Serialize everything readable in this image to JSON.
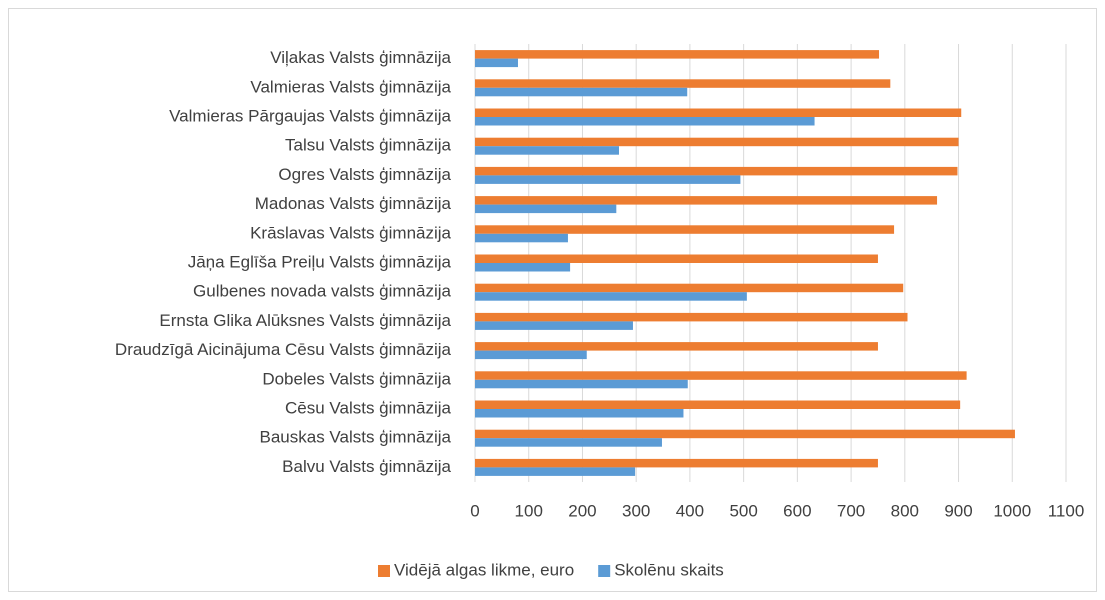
{
  "chart_data": {
    "type": "hbar",
    "categories": [
      "Balvu Valsts ģimnāzija",
      "Bauskas Valsts ģimnāzija",
      "Cēsu Valsts ģimnāzija",
      "Dobeles Valsts ģimnāzija",
      "Draudzīgā Aicinājuma Cēsu Valsts ģimnāzija",
      "Ernsta Glika Alūksnes Valsts ģimnāzija",
      "Gulbenes novada valsts ģimnāzija",
      "Jāņa Eglīša Preiļu Valsts ģimnāzija",
      "Krāslavas Valsts ģimnāzija",
      "Madonas Valsts ģimnāzija",
      "Ogres Valsts ģimnāzija",
      "Talsu Valsts ģimnāzija",
      "Valmieras Pārgaujas Valsts ģimnāzija",
      "Valmieras Valsts ģimnāzija",
      "Viļakas Valsts ģimnāzija"
    ],
    "series": [
      {
        "name": "Vidējā algas likme, euro",
        "color": "#ed7d31",
        "values": [
          750,
          1005,
          903,
          915,
          750,
          805,
          797,
          750,
          780,
          860,
          898,
          900,
          905,
          773,
          752
        ]
      },
      {
        "name": "Skolēnu skaits",
        "color": "#5b9bd5",
        "values": [
          298,
          348,
          388,
          396,
          208,
          294,
          506,
          177,
          173,
          263,
          494,
          268,
          632,
          395,
          80
        ]
      }
    ],
    "xlim": [
      0,
      1100
    ],
    "xticks": [
      0,
      100,
      200,
      300,
      400,
      500,
      600,
      700,
      800,
      900,
      1000,
      1100
    ],
    "grid": true,
    "legend": "bottom"
  }
}
